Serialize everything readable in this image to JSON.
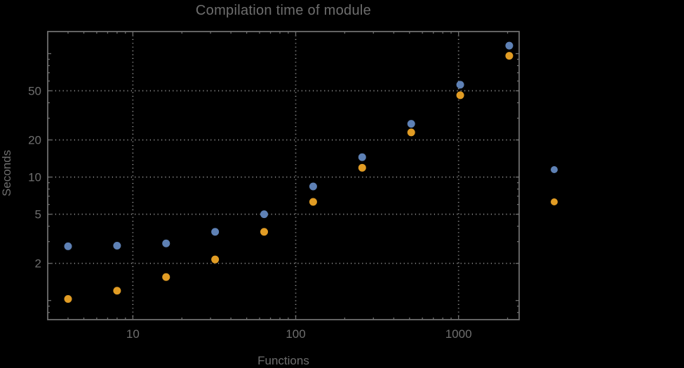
{
  "chart": {
    "title": "Compilation time of module",
    "xlabel": "Functions",
    "ylabel": "Seconds"
  },
  "chart_data": {
    "type": "scatter",
    "title": "Compilation time of module",
    "xlabel": "Functions",
    "ylabel": "Seconds",
    "x_scale": "log",
    "y_scale": "log",
    "x": [
      4,
      8,
      16,
      32,
      64,
      128,
      256,
      512,
      1024,
      2048
    ],
    "series": [
      {
        "name": "blue",
        "color": "#5E81B5",
        "values": [
          2.75,
          2.78,
          2.9,
          3.6,
          5.0,
          8.4,
          14.5,
          27,
          56,
          116
        ]
      },
      {
        "name": "orange",
        "color": "#E19C24",
        "values": [
          1.03,
          1.2,
          1.55,
          2.15,
          3.6,
          6.3,
          11.9,
          23,
          46,
          96
        ]
      }
    ],
    "xlim": [
      3,
      2355
    ],
    "ylim": [
      0.7,
      151
    ],
    "x_tick_labels": [
      "10",
      "100",
      "1000"
    ],
    "y_tick_labels": [
      "2",
      "5",
      "10",
      "20",
      "50"
    ],
    "x_major_ticks": [
      10,
      100,
      1000
    ],
    "y_major_ticks": [
      1,
      2,
      5,
      10,
      20,
      50,
      100
    ],
    "x_gridlines": [
      10,
      100,
      1000
    ],
    "y_gridlines": [
      2,
      5,
      10,
      20,
      50
    ],
    "grid": "dotted",
    "legend_position": "right-outside",
    "legend_markers": [
      {
        "color": "#5E81B5"
      },
      {
        "color": "#E19C24"
      }
    ]
  },
  "colors": {
    "background": "#000000",
    "frame": "#6e6e6e",
    "grid": "#8f8f8f",
    "text": "#6e6e6e",
    "series_blue": "#5E81B5",
    "series_orange": "#E19C24"
  }
}
